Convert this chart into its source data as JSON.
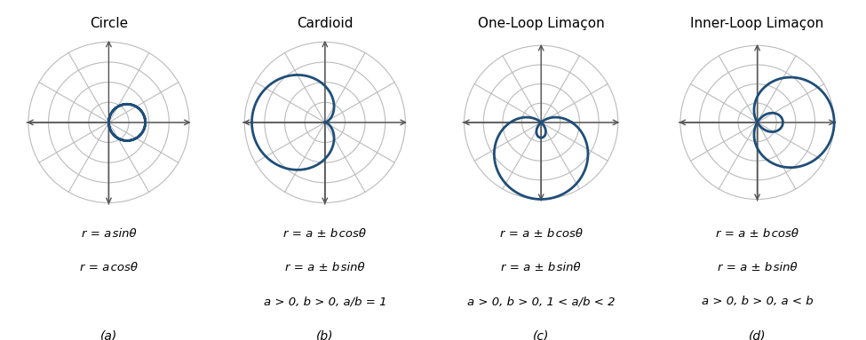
{
  "titles": [
    "Circle",
    "Cardioid",
    "One-Loop Limaçon",
    "Inner-Loop Limaçon"
  ],
  "labels": [
    "(a)",
    "(b)",
    "(c)",
    "(d)"
  ],
  "formulas": [
    [
      "r = a sinθ",
      "r = a cosθ"
    ],
    [
      "r = a ± b cosθ",
      "r = a ± b sinθ",
      "a > 0, b > 0, a/b = 1"
    ],
    [
      "r = a ± b cosθ",
      "r = a ± b sinθ",
      "a > 0, b > 0, 1 < a/b < 2"
    ],
    [
      "r = a ± b cosθ",
      "r = a ± b sinθ",
      "a > 0, b > 0, a < b"
    ]
  ],
  "curve_color": "#1F4E79",
  "grid_color": "#BBBBBB",
  "axis_color": "#555555",
  "bg_color": "#FFFFFF",
  "curve_lw": 2.0,
  "grid_lw": 0.8,
  "axis_lw": 1.0,
  "circle_a": 1.0,
  "cardioid_a": 1.0,
  "cardioid_b": 1.0,
  "one_loop_a": 1.5,
  "one_loop_b": 1.0,
  "inner_loop_a": 0.5,
  "inner_loop_b": 1.0,
  "n_grid_circles": 4,
  "n_grid_spokes": 6,
  "arrow_scale": 10
}
